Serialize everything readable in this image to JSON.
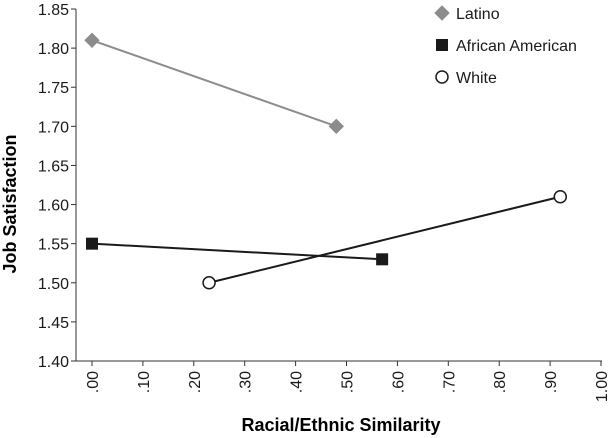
{
  "chart_data": {
    "type": "line",
    "title": "",
    "xlabel": "Racial/Ethnic Similarity",
    "ylabel": "Job Satisfaction",
    "xlim": [
      0,
      1
    ],
    "ylim": [
      1.4,
      1.85
    ],
    "x_ticks": [
      ".00",
      ".10",
      ".20",
      ".30",
      ".40",
      ".50",
      ".60",
      ".70",
      ".80",
      ".90",
      "1.00"
    ],
    "y_ticks": [
      "1.40",
      "1.45",
      "1.50",
      "1.55",
      "1.60",
      "1.65",
      "1.70",
      "1.75",
      "1.80",
      "1.85"
    ],
    "grid": false,
    "legend_position": "top-right",
    "series": [
      {
        "name": "Latino",
        "marker": "diamond",
        "color": "#8c8c8c",
        "points": [
          {
            "x": 0.0,
            "y": 1.81
          },
          {
            "x": 0.48,
            "y": 1.7
          }
        ]
      },
      {
        "name": "African American",
        "marker": "square",
        "color": "#1a1a1a",
        "points": [
          {
            "x": 0.0,
            "y": 1.55
          },
          {
            "x": 0.57,
            "y": 1.53
          }
        ]
      },
      {
        "name": "White",
        "marker": "circle-open",
        "color": "#1a1a1a",
        "points": [
          {
            "x": 0.23,
            "y": 1.5
          },
          {
            "x": 0.92,
            "y": 1.61
          }
        ]
      }
    ]
  }
}
